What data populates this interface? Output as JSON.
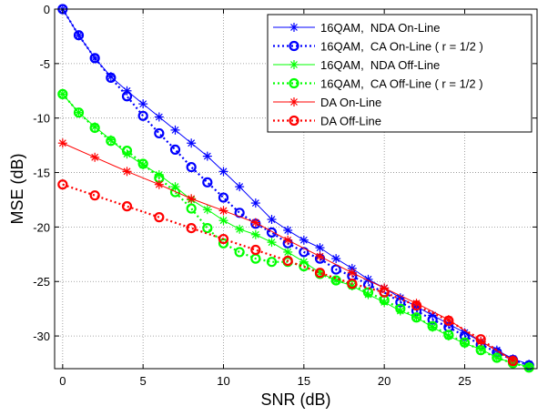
{
  "chart_data": {
    "type": "line",
    "xlabel": "SNR (dB)",
    "ylabel": "MSE (dB)",
    "xlim": [
      -0.5,
      29.5
    ],
    "ylim": [
      -33,
      0
    ],
    "xticks": [
      0,
      5,
      10,
      15,
      20,
      25
    ],
    "yticks": [
      0,
      -5,
      -10,
      -15,
      -20,
      -25,
      -30
    ],
    "grid": true,
    "legend_position": "top-right",
    "series": [
      {
        "name": "16QAM,  NDA On-Line",
        "color": "#0000ff",
        "line": "solid",
        "marker": "star",
        "x": [
          0,
          1,
          2,
          3,
          4,
          5,
          6,
          7,
          8,
          9,
          10,
          11,
          12,
          13,
          14,
          15,
          16,
          17,
          18,
          19,
          20,
          21,
          22,
          23,
          24,
          25,
          26,
          27,
          28,
          29
        ],
        "y": [
          0,
          -2.4,
          -4.5,
          -6.2,
          -7.5,
          -8.7,
          -9.9,
          -11.1,
          -12.3,
          -13.5,
          -14.9,
          -16.3,
          -17.8,
          -19.3,
          -20.3,
          -21.2,
          -21.9,
          -22.9,
          -23.8,
          -24.8,
          -25.6,
          -26.5,
          -27.3,
          -28.1,
          -28.9,
          -29.7,
          -30.5,
          -31.3,
          -32.1,
          -32.6
        ]
      },
      {
        "name": "16QAM,  CA On-Line ( r = 1/2 )",
        "color": "#0000ff",
        "line": "dotted",
        "marker": "circle",
        "x": [
          0,
          1,
          2,
          3,
          4,
          5,
          6,
          7,
          8,
          9,
          10,
          11,
          12,
          13,
          14,
          15,
          16,
          17,
          18,
          19,
          20,
          21,
          22,
          23,
          24,
          25,
          26,
          27,
          28,
          29
        ],
        "y": [
          0,
          -2.4,
          -4.5,
          -6.3,
          -8.0,
          -9.8,
          -11.4,
          -12.9,
          -14.5,
          -15.9,
          -17.3,
          -18.7,
          -19.7,
          -20.5,
          -21.5,
          -22.3,
          -22.9,
          -23.9,
          -24.5,
          -25.3,
          -26.0,
          -26.9,
          -27.7,
          -28.5,
          -29.2,
          -30.0,
          -30.8,
          -31.5,
          -32.2,
          -32.7
        ]
      },
      {
        "name": "16QAM,  NDA Off-Line",
        "color": "#00ff00",
        "line": "solid",
        "marker": "star",
        "x": [
          0,
          1,
          2,
          3,
          4,
          5,
          6,
          7,
          8,
          9,
          10,
          11,
          12,
          13,
          14,
          15,
          16,
          17,
          18,
          19,
          20,
          21,
          22,
          23,
          24,
          25,
          26,
          27,
          28,
          29
        ],
        "y": [
          -7.8,
          -9.5,
          -10.8,
          -12.0,
          -13.3,
          -14.3,
          -15.2,
          -16.3,
          -17.5,
          -18.4,
          -19.4,
          -20.2,
          -20.7,
          -21.4,
          -22.3,
          -23.2,
          -24.2,
          -24.9,
          -25.4,
          -26.2,
          -26.9,
          -27.7,
          -28.3,
          -29.2,
          -30.0,
          -30.7,
          -31.2,
          -32.0,
          -32.5,
          -32.8
        ]
      },
      {
        "name": "16QAM,  CA Off-Line ( r = 1/2 )",
        "color": "#00ff00",
        "line": "dotted",
        "marker": "circle",
        "x": [
          0,
          1,
          2,
          3,
          4,
          5,
          6,
          7,
          8,
          9,
          10,
          11,
          12,
          13,
          14,
          15,
          16,
          17,
          18,
          19,
          20,
          21,
          22,
          23,
          24,
          25,
          26,
          27,
          28,
          29
        ],
        "y": [
          -7.8,
          -9.5,
          -10.9,
          -12.1,
          -13.0,
          -14.2,
          -15.5,
          -16.8,
          -18.3,
          -20.1,
          -21.5,
          -22.3,
          -22.9,
          -23.2,
          -23.2,
          -23.6,
          -24.3,
          -24.9,
          -25.3,
          -26.0,
          -26.7,
          -27.5,
          -28.3,
          -29.1,
          -29.9,
          -30.6,
          -31.3,
          -32.0,
          -32.5,
          -32.9
        ]
      },
      {
        "name": "DA On-Line",
        "color": "#ff0000",
        "line": "solid",
        "marker": "star",
        "x": [
          0,
          2,
          4,
          6,
          8,
          10,
          12,
          14,
          16,
          18,
          20,
          22,
          24,
          26,
          28
        ],
        "y": [
          -12.3,
          -13.6,
          -14.9,
          -16.1,
          -17.4,
          -18.5,
          -19.6,
          -21.2,
          -22.7,
          -24.2,
          -25.6,
          -27.0,
          -28.5,
          -30.5,
          -32.2
        ]
      },
      {
        "name": "DA Off-Line",
        "color": "#ff0000",
        "line": "dotted",
        "marker": "circle",
        "x": [
          0,
          2,
          4,
          6,
          8,
          10,
          12,
          14,
          16,
          18,
          20,
          22,
          24,
          26,
          28
        ],
        "y": [
          -16.1,
          -17.1,
          -18.1,
          -19.1,
          -20.1,
          -21.1,
          -22.1,
          -23.1,
          -24.2,
          -25.2,
          -26.0,
          -27.2,
          -28.6,
          -30.3,
          -32.3
        ]
      }
    ]
  }
}
